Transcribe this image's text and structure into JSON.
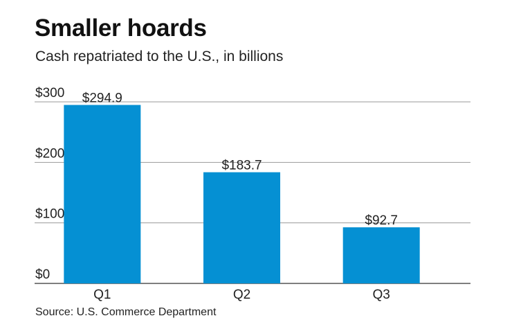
{
  "title": "Smaller hoards",
  "subtitle": "Cash repatriated to the U.S., in billions",
  "source": "Source: U.S. Commerce Department",
  "colors": {
    "bar": "#0590d3",
    "grid": "#999999",
    "axis": "#333333"
  },
  "chart_data": {
    "type": "bar",
    "title": "Smaller hoards",
    "subtitle": "Cash repatriated to the U.S., in billions",
    "categories": [
      "Q1",
      "Q2",
      "Q3"
    ],
    "values": [
      294.9,
      183.7,
      92.7
    ],
    "data_labels": [
      "$294.9",
      "$183.7",
      "$92.7"
    ],
    "y_ticks": [
      0,
      100,
      200,
      300
    ],
    "y_tick_labels": [
      "$0",
      "$100",
      "$200",
      "$300"
    ],
    "ylim": [
      0,
      300
    ],
    "xlabel": "",
    "ylabel": "",
    "grid": true,
    "legend": "none"
  }
}
